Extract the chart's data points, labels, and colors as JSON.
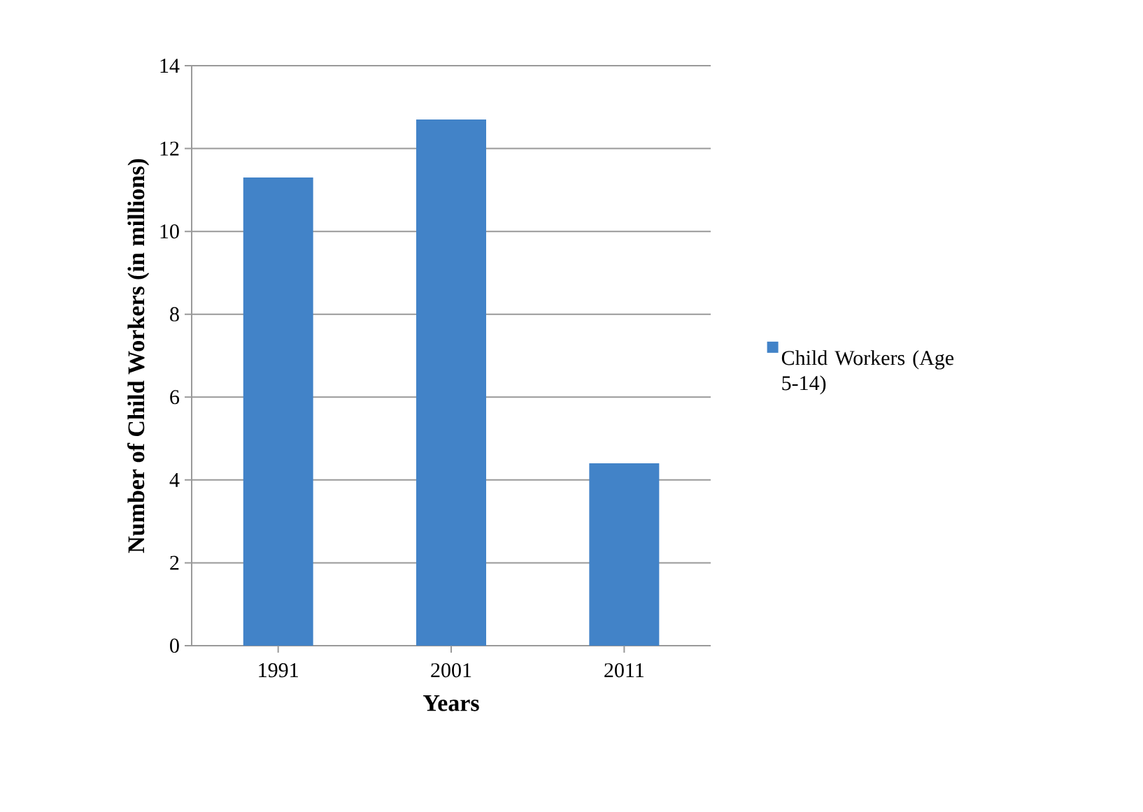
{
  "chart_data": {
    "type": "bar",
    "xlabel": "Years",
    "ylabel": "Number of Child Workers (in millions)",
    "categories": [
      "1991",
      "2001",
      "2011"
    ],
    "series": [
      {
        "name": "Child Workers (Age 5-14)",
        "color": "#4283c8",
        "values": [
          11.3,
          12.7,
          4.4
        ]
      }
    ],
    "ylim": [
      0,
      14
    ],
    "yticks": [
      0,
      2,
      4,
      6,
      8,
      10,
      12,
      14
    ],
    "grid": "y",
    "legend": "right"
  }
}
